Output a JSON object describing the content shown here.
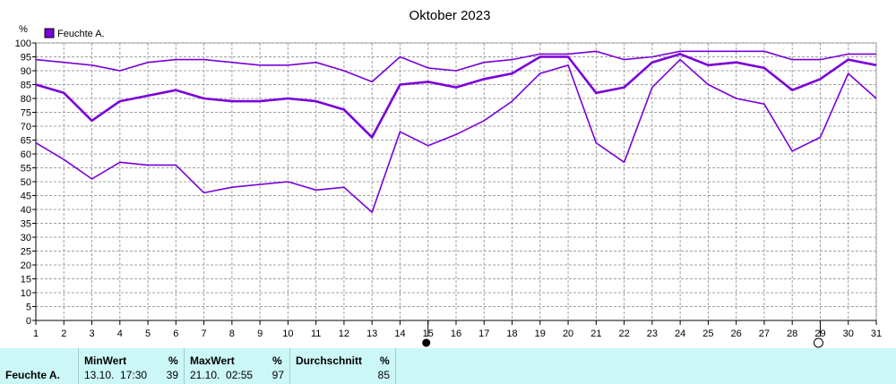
{
  "chart_data": {
    "type": "line",
    "title": "Oktober 2023",
    "ylabel": "%",
    "ylim": [
      0,
      100
    ],
    "yticks": [
      0,
      5,
      10,
      15,
      20,
      25,
      30,
      35,
      40,
      45,
      50,
      55,
      60,
      65,
      70,
      75,
      80,
      85,
      90,
      95,
      100
    ],
    "x": [
      1,
      2,
      3,
      4,
      5,
      6,
      7,
      8,
      9,
      10,
      11,
      12,
      13,
      14,
      15,
      16,
      17,
      18,
      19,
      20,
      21,
      22,
      23,
      24,
      25,
      26,
      27,
      28,
      29,
      30,
      31
    ],
    "grid": true,
    "legend": "top-left",
    "legend_label": "Feuchte A.",
    "color": "#7a00d9",
    "series": [
      {
        "role": "max",
        "values": [
          94,
          93,
          92,
          90,
          93,
          94,
          94,
          93,
          92,
          92,
          93,
          90,
          86,
          95,
          91,
          90,
          93,
          94,
          96,
          96,
          97,
          94,
          95,
          97,
          97,
          97,
          97,
          94,
          94,
          96,
          96
        ]
      },
      {
        "role": "avg",
        "values": [
          85,
          82,
          72,
          79,
          81,
          83,
          80,
          79,
          79,
          80,
          79,
          76,
          66,
          85,
          86,
          84,
          87,
          89,
          95,
          95,
          82,
          84,
          93,
          96,
          92,
          93,
          91,
          83,
          87,
          94,
          92
        ]
      },
      {
        "role": "min",
        "values": [
          64,
          58,
          51,
          57,
          56,
          56,
          46,
          48,
          49,
          50,
          47,
          48,
          39,
          68,
          63,
          67,
          72,
          79,
          89,
          92,
          64,
          57,
          84,
          94,
          85,
          80,
          78,
          61,
          66,
          89,
          80
        ]
      }
    ],
    "markers": [
      {
        "day": 15,
        "kind": "filled-circle"
      },
      {
        "day": 29,
        "kind": "open-circle"
      }
    ]
  },
  "stats": {
    "row_label": "Feuchte A.",
    "min_header": "MinWert",
    "min_unit": "%",
    "min_time": "13.10.  17:30",
    "min_value": "39",
    "max_header": "MaxWert",
    "max_unit": "%",
    "max_time": "21.10.  02:55",
    "max_value": "97",
    "avg_header": "Durchschnitt",
    "avg_unit": "%",
    "avg_value": "85"
  }
}
